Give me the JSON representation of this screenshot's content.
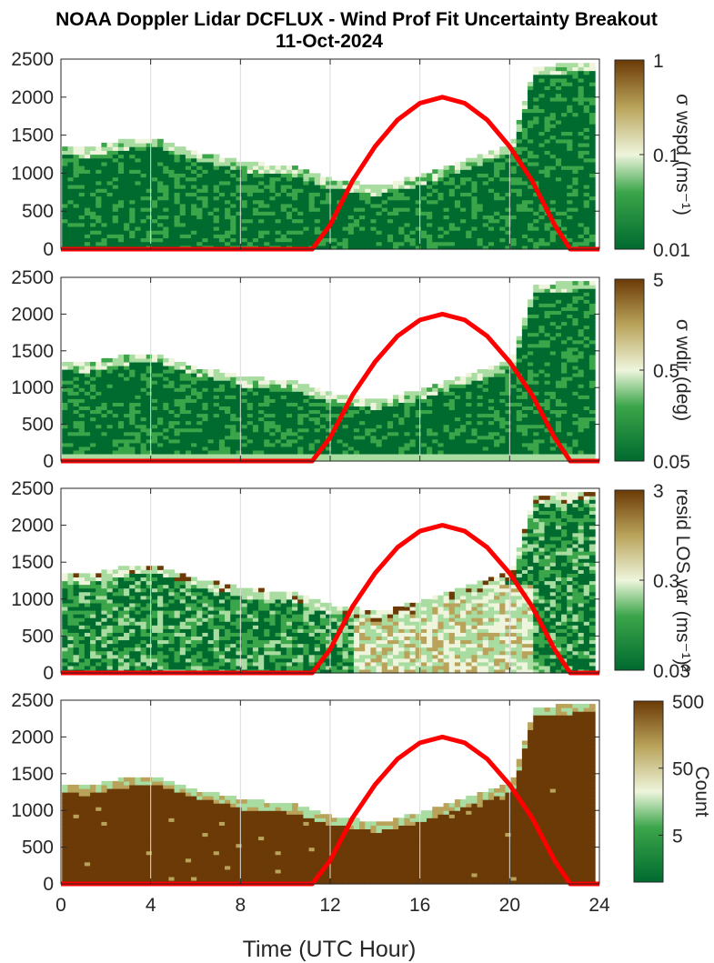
{
  "figure": {
    "title_line1": "NOAA Doppler Lidar DCFLUX - Wind Prof Fit Uncertainty Breakout",
    "title_line2": "11-Oct-2024",
    "xlabel": "Time (UTC Hour)"
  },
  "colors": {
    "dark_green": "#006b2f",
    "mid_green": "#3ba54a",
    "light_green": "#a8dca0",
    "pale": "#eef5dc",
    "tan": "#b9a35a",
    "brown": "#6b3a06",
    "sun_curve": "#ff0000",
    "axis": "#262626",
    "grid": "#dcdcdc"
  },
  "chart_data": [
    {
      "type": "heatmap",
      "xlim": [
        0,
        24
      ],
      "ylim": [
        0,
        2500
      ],
      "xticks": [
        "0",
        "4",
        "8",
        "12",
        "16",
        "20",
        "24"
      ],
      "yticks": [
        "0",
        "500",
        "1000",
        "1500",
        "2000",
        "2500"
      ],
      "grid": true,
      "colorbar": {
        "label": "σ wspd (ms⁻¹)",
        "scale": "log",
        "range": [
          0.01,
          1
        ],
        "ticks": [
          "0.01",
          "0.1",
          "1"
        ]
      },
      "data_top_height": {
        "x": [
          0,
          1,
          2,
          3,
          4,
          5,
          6,
          7,
          8,
          9,
          10,
          11,
          12,
          13,
          14,
          15,
          16,
          17,
          18,
          19,
          20,
          21,
          22,
          23.5
        ],
        "y": [
          1350,
          1300,
          1380,
          1420,
          1450,
          1350,
          1250,
          1200,
          1120,
          1100,
          1080,
          1000,
          900,
          860,
          800,
          880,
          950,
          1050,
          1150,
          1250,
          1350,
          2400,
          2400,
          2450
        ]
      },
      "sun_curve": {
        "x": [
          0,
          11.2,
          12,
          13,
          14,
          15,
          16,
          17,
          18,
          19,
          20,
          21,
          22,
          22.7,
          24
        ],
        "y": [
          0,
          0,
          320,
          900,
          1350,
          1700,
          1920,
          2000,
          1920,
          1700,
          1350,
          900,
          320,
          0,
          0
        ]
      }
    },
    {
      "type": "heatmap",
      "xlim": [
        0,
        24
      ],
      "ylim": [
        0,
        2500
      ],
      "xticks": [
        "0",
        "4",
        "8",
        "12",
        "16",
        "20",
        "24"
      ],
      "yticks": [
        "0",
        "500",
        "1000",
        "1500",
        "2000",
        "2500"
      ],
      "grid": true,
      "colorbar": {
        "label": "σ wdir (deg)",
        "scale": "log",
        "range": [
          0.05,
          5
        ],
        "ticks": [
          "0.05",
          "0.5",
          "5"
        ]
      },
      "data_top_height": {
        "x": [
          0,
          1,
          2,
          3,
          4,
          5,
          6,
          7,
          8,
          9,
          10,
          11,
          12,
          13,
          14,
          15,
          16,
          17,
          18,
          19,
          20,
          21,
          22,
          23.5
        ],
        "y": [
          1350,
          1300,
          1380,
          1420,
          1450,
          1350,
          1250,
          1200,
          1120,
          1100,
          1080,
          1000,
          900,
          860,
          800,
          880,
          950,
          1050,
          1150,
          1250,
          1350,
          2400,
          2400,
          2450
        ]
      },
      "sun_curve": {
        "x": [
          0,
          11.2,
          12,
          13,
          14,
          15,
          16,
          17,
          18,
          19,
          20,
          21,
          22,
          22.7,
          24
        ],
        "y": [
          0,
          0,
          320,
          900,
          1350,
          1700,
          1920,
          2000,
          1920,
          1700,
          1350,
          900,
          320,
          0,
          0
        ]
      }
    },
    {
      "type": "heatmap",
      "xlim": [
        0,
        24
      ],
      "ylim": [
        0,
        2500
      ],
      "xticks": [
        "0",
        "4",
        "8",
        "12",
        "16",
        "20",
        "24"
      ],
      "yticks": [
        "0",
        "500",
        "1000",
        "1500",
        "2000",
        "2500"
      ],
      "grid": true,
      "colorbar": {
        "label": "resid LOS var (ms⁻¹)²",
        "scale": "log",
        "range": [
          0.03,
          3
        ],
        "ticks": [
          "0.03",
          "0.3",
          "3"
        ]
      },
      "data_top_height": {
        "x": [
          0,
          1,
          2,
          3,
          4,
          5,
          6,
          7,
          8,
          9,
          10,
          11,
          12,
          13,
          14,
          15,
          16,
          17,
          18,
          19,
          20,
          21,
          22,
          23.5
        ],
        "y": [
          1350,
          1300,
          1380,
          1420,
          1450,
          1350,
          1250,
          1200,
          1120,
          1100,
          1080,
          1000,
          900,
          860,
          800,
          880,
          950,
          1050,
          1150,
          1250,
          1350,
          2400,
          2400,
          2450
        ]
      },
      "sun_curve": {
        "x": [
          0,
          11.2,
          12,
          13,
          14,
          15,
          16,
          17,
          18,
          19,
          20,
          21,
          22,
          22.7,
          24
        ],
        "y": [
          0,
          0,
          320,
          900,
          1350,
          1700,
          1920,
          2000,
          1920,
          1700,
          1350,
          900,
          320,
          0,
          0
        ]
      }
    },
    {
      "type": "heatmap",
      "xlim": [
        0,
        24
      ],
      "ylim": [
        0,
        2500
      ],
      "xticks": [
        "0",
        "4",
        "8",
        "12",
        "16",
        "20",
        "24"
      ],
      "yticks": [
        "0",
        "500",
        "1000",
        "1500",
        "2000",
        "2500"
      ],
      "grid": true,
      "colorbar": {
        "label": "Count",
        "scale": "log",
        "range": [
          1,
          500
        ],
        "ticks": [
          "5",
          "50",
          "500"
        ]
      },
      "data_top_height": {
        "x": [
          0,
          1,
          2,
          3,
          4,
          5,
          6,
          7,
          8,
          9,
          10,
          11,
          12,
          13,
          14,
          15,
          16,
          17,
          18,
          19,
          20,
          21,
          22,
          23.5
        ],
        "y": [
          1350,
          1300,
          1380,
          1420,
          1450,
          1350,
          1250,
          1200,
          1120,
          1100,
          1080,
          1000,
          900,
          860,
          800,
          880,
          950,
          1050,
          1150,
          1250,
          1350,
          2400,
          2400,
          2450
        ]
      },
      "sun_curve": {
        "x": [
          0,
          11.2,
          12,
          13,
          14,
          15,
          16,
          17,
          18,
          19,
          20,
          21,
          22,
          22.7,
          24
        ],
        "y": [
          0,
          0,
          320,
          900,
          1350,
          1700,
          1920,
          2000,
          1920,
          1700,
          1350,
          900,
          320,
          0,
          0
        ]
      }
    }
  ]
}
